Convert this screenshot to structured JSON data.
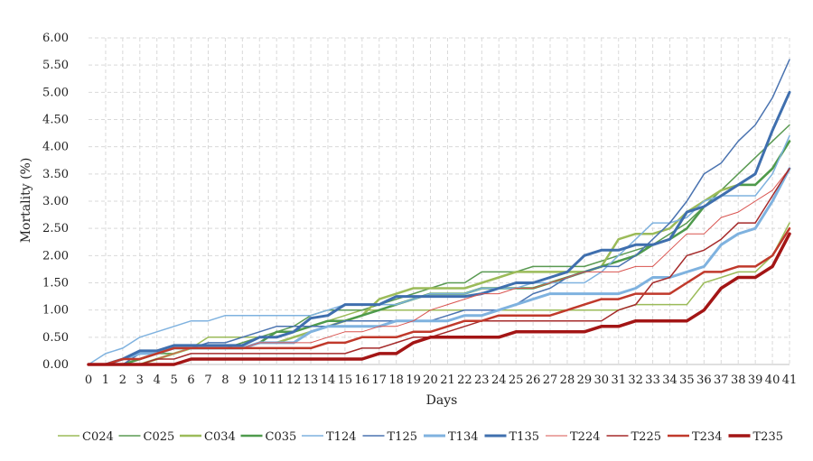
{
  "chart_data": {
    "type": "line",
    "xlabel": "Days",
    "ylabel": "Mortality (%)",
    "xlim": [
      0,
      41
    ],
    "ylim": [
      0,
      6
    ],
    "y_ticks": [
      "0.00",
      "0.50",
      "1.00",
      "1.50",
      "2.00",
      "2.50",
      "3.00",
      "3.50",
      "4.00",
      "4.50",
      "5.00",
      "5.50",
      "6.00"
    ],
    "x": [
      0,
      1,
      2,
      3,
      4,
      5,
      6,
      7,
      8,
      9,
      10,
      11,
      12,
      13,
      14,
      15,
      16,
      17,
      18,
      19,
      20,
      21,
      22,
      23,
      24,
      25,
      26,
      27,
      28,
      29,
      30,
      31,
      32,
      33,
      34,
      35,
      36,
      37,
      38,
      39,
      40,
      41
    ],
    "grid": "vertical and horizontal dashed",
    "legend": "bottom",
    "series": [
      {
        "name": "C024",
        "color": "#9bbb59",
        "width": 1.5,
        "values": [
          0,
          0,
          0,
          0.1,
          0.2,
          0.2,
          0.3,
          0.5,
          0.5,
          0.5,
          0.5,
          0.5,
          0.6,
          0.7,
          0.8,
          0.9,
          1.0,
          1.0,
          1.0,
          1.0,
          1.0,
          1.0,
          1.0,
          1.0,
          1.0,
          1.0,
          1.0,
          1.0,
          1.0,
          1.0,
          1.0,
          1.0,
          1.1,
          1.1,
          1.1,
          1.1,
          1.5,
          1.6,
          1.7,
          1.7,
          2.0,
          2.6
        ]
      },
      {
        "name": "C025",
        "color": "#5a9a52",
        "width": 1.5,
        "values": [
          0,
          0,
          0,
          0.1,
          0.2,
          0.2,
          0.3,
          0.3,
          0.3,
          0.4,
          0.5,
          0.6,
          0.7,
          0.9,
          1.0,
          1.0,
          1.0,
          1.1,
          1.2,
          1.3,
          1.4,
          1.5,
          1.5,
          1.7,
          1.7,
          1.7,
          1.8,
          1.8,
          1.8,
          1.8,
          1.9,
          2.0,
          2.1,
          2.2,
          2.4,
          2.6,
          2.9,
          3.2,
          3.5,
          3.8,
          4.1,
          4.4
        ]
      },
      {
        "name": "C034",
        "color": "#9bbb59",
        "width": 2.5,
        "values": [
          0,
          0,
          0,
          0,
          0.1,
          0.2,
          0.3,
          0.3,
          0.3,
          0.3,
          0.4,
          0.4,
          0.5,
          0.6,
          0.7,
          0.8,
          0.9,
          1.2,
          1.3,
          1.4,
          1.4,
          1.4,
          1.4,
          1.5,
          1.6,
          1.7,
          1.7,
          1.7,
          1.7,
          1.7,
          1.8,
          2.3,
          2.4,
          2.4,
          2.5,
          2.8,
          3.0,
          3.2,
          3.3,
          3.3,
          3.6,
          4.1
        ]
      },
      {
        "name": "C035",
        "color": "#4e9a4c",
        "width": 2.5,
        "values": [
          0,
          0,
          0,
          0.1,
          0.2,
          0.3,
          0.3,
          0.3,
          0.3,
          0.3,
          0.4,
          0.6,
          0.6,
          0.7,
          0.8,
          0.8,
          0.9,
          1.0,
          1.1,
          1.2,
          1.3,
          1.3,
          1.3,
          1.4,
          1.4,
          1.4,
          1.4,
          1.5,
          1.6,
          1.7,
          1.8,
          1.9,
          2.0,
          2.2,
          2.3,
          2.5,
          2.9,
          3.1,
          3.3,
          3.3,
          3.6,
          4.1
        ]
      },
      {
        "name": "T124",
        "color": "#7fb2df",
        "width": 1.5,
        "values": [
          0,
          0.2,
          0.3,
          0.5,
          0.6,
          0.7,
          0.8,
          0.8,
          0.9,
          0.9,
          0.9,
          0.9,
          0.9,
          0.9,
          1.0,
          1.1,
          1.1,
          1.1,
          1.1,
          1.2,
          1.3,
          1.3,
          1.3,
          1.4,
          1.4,
          1.4,
          1.5,
          1.5,
          1.5,
          1.5,
          1.7,
          2.0,
          2.3,
          2.6,
          2.6,
          2.7,
          3.0,
          3.1,
          3.1,
          3.1,
          3.5,
          4.2
        ]
      },
      {
        "name": "T125",
        "color": "#4a73b0",
        "width": 1.5,
        "values": [
          0,
          0,
          0,
          0.2,
          0.2,
          0.3,
          0.3,
          0.4,
          0.4,
          0.5,
          0.6,
          0.7,
          0.7,
          0.7,
          0.7,
          0.8,
          0.8,
          0.8,
          0.8,
          0.8,
          0.8,
          0.9,
          1.0,
          1.0,
          1.0,
          1.1,
          1.3,
          1.4,
          1.6,
          1.7,
          1.8,
          1.8,
          2.0,
          2.3,
          2.6,
          3.0,
          3.5,
          3.7,
          4.1,
          4.4,
          4.9,
          5.6
        ]
      },
      {
        "name": "T134",
        "color": "#7fb2df",
        "width": 3.0,
        "values": [
          0,
          0,
          0.1,
          0.2,
          0.2,
          0.3,
          0.3,
          0.3,
          0.3,
          0.3,
          0.4,
          0.4,
          0.4,
          0.6,
          0.7,
          0.7,
          0.7,
          0.7,
          0.8,
          0.8,
          0.8,
          0.8,
          0.9,
          0.9,
          1.0,
          1.1,
          1.2,
          1.3,
          1.3,
          1.3,
          1.3,
          1.3,
          1.4,
          1.6,
          1.6,
          1.7,
          1.8,
          2.2,
          2.4,
          2.5,
          3.0,
          3.6
        ]
      },
      {
        "name": "T135",
        "color": "#3f6fae",
        "width": 3.0,
        "values": [
          0,
          0,
          0.1,
          0.25,
          0.25,
          0.35,
          0.35,
          0.35,
          0.35,
          0.35,
          0.5,
          0.5,
          0.6,
          0.85,
          0.9,
          1.1,
          1.1,
          1.1,
          1.25,
          1.25,
          1.25,
          1.25,
          1.25,
          1.3,
          1.4,
          1.5,
          1.5,
          1.6,
          1.7,
          2.0,
          2.1,
          2.1,
          2.2,
          2.2,
          2.3,
          2.8,
          2.9,
          3.1,
          3.3,
          3.5,
          4.3,
          5.0
        ]
      },
      {
        "name": "T224",
        "color": "#d9534f",
        "width": 1.0,
        "values": [
          0,
          0,
          0,
          0,
          0.1,
          0.2,
          0.3,
          0.3,
          0.3,
          0.3,
          0.4,
          0.4,
          0.4,
          0.4,
          0.5,
          0.6,
          0.6,
          0.7,
          0.7,
          0.8,
          1.0,
          1.1,
          1.2,
          1.3,
          1.3,
          1.4,
          1.4,
          1.5,
          1.6,
          1.7,
          1.7,
          1.7,
          1.8,
          1.8,
          2.1,
          2.4,
          2.4,
          2.7,
          2.8,
          3.0,
          3.2,
          3.6
        ]
      },
      {
        "name": "T225",
        "color": "#a52a2a",
        "width": 1.5,
        "values": [
          0,
          0,
          0,
          0,
          0.1,
          0.1,
          0.2,
          0.2,
          0.2,
          0.2,
          0.2,
          0.2,
          0.2,
          0.2,
          0.2,
          0.2,
          0.3,
          0.3,
          0.4,
          0.5,
          0.5,
          0.6,
          0.7,
          0.8,
          0.8,
          0.8,
          0.8,
          0.8,
          0.8,
          0.8,
          0.8,
          1.0,
          1.1,
          1.5,
          1.6,
          2.0,
          2.1,
          2.3,
          2.6,
          2.6,
          3.1,
          3.6
        ]
      },
      {
        "name": "T234",
        "color": "#c0392b",
        "width": 2.5,
        "values": [
          0,
          0,
          0.1,
          0.1,
          0.2,
          0.3,
          0.3,
          0.3,
          0.3,
          0.3,
          0.3,
          0.3,
          0.3,
          0.3,
          0.4,
          0.4,
          0.5,
          0.5,
          0.5,
          0.6,
          0.6,
          0.7,
          0.8,
          0.8,
          0.9,
          0.9,
          0.9,
          0.9,
          1.0,
          1.1,
          1.2,
          1.2,
          1.3,
          1.3,
          1.3,
          1.5,
          1.7,
          1.7,
          1.8,
          1.8,
          2.0,
          2.5
        ]
      },
      {
        "name": "T235",
        "color": "#a31515",
        "width": 3.5,
        "values": [
          0,
          0,
          0,
          0,
          0,
          0,
          0.1,
          0.1,
          0.1,
          0.1,
          0.1,
          0.1,
          0.1,
          0.1,
          0.1,
          0.1,
          0.1,
          0.2,
          0.2,
          0.4,
          0.5,
          0.5,
          0.5,
          0.5,
          0.5,
          0.6,
          0.6,
          0.6,
          0.6,
          0.6,
          0.7,
          0.7,
          0.8,
          0.8,
          0.8,
          0.8,
          1.0,
          1.4,
          1.6,
          1.6,
          1.8,
          2.4
        ]
      }
    ]
  }
}
